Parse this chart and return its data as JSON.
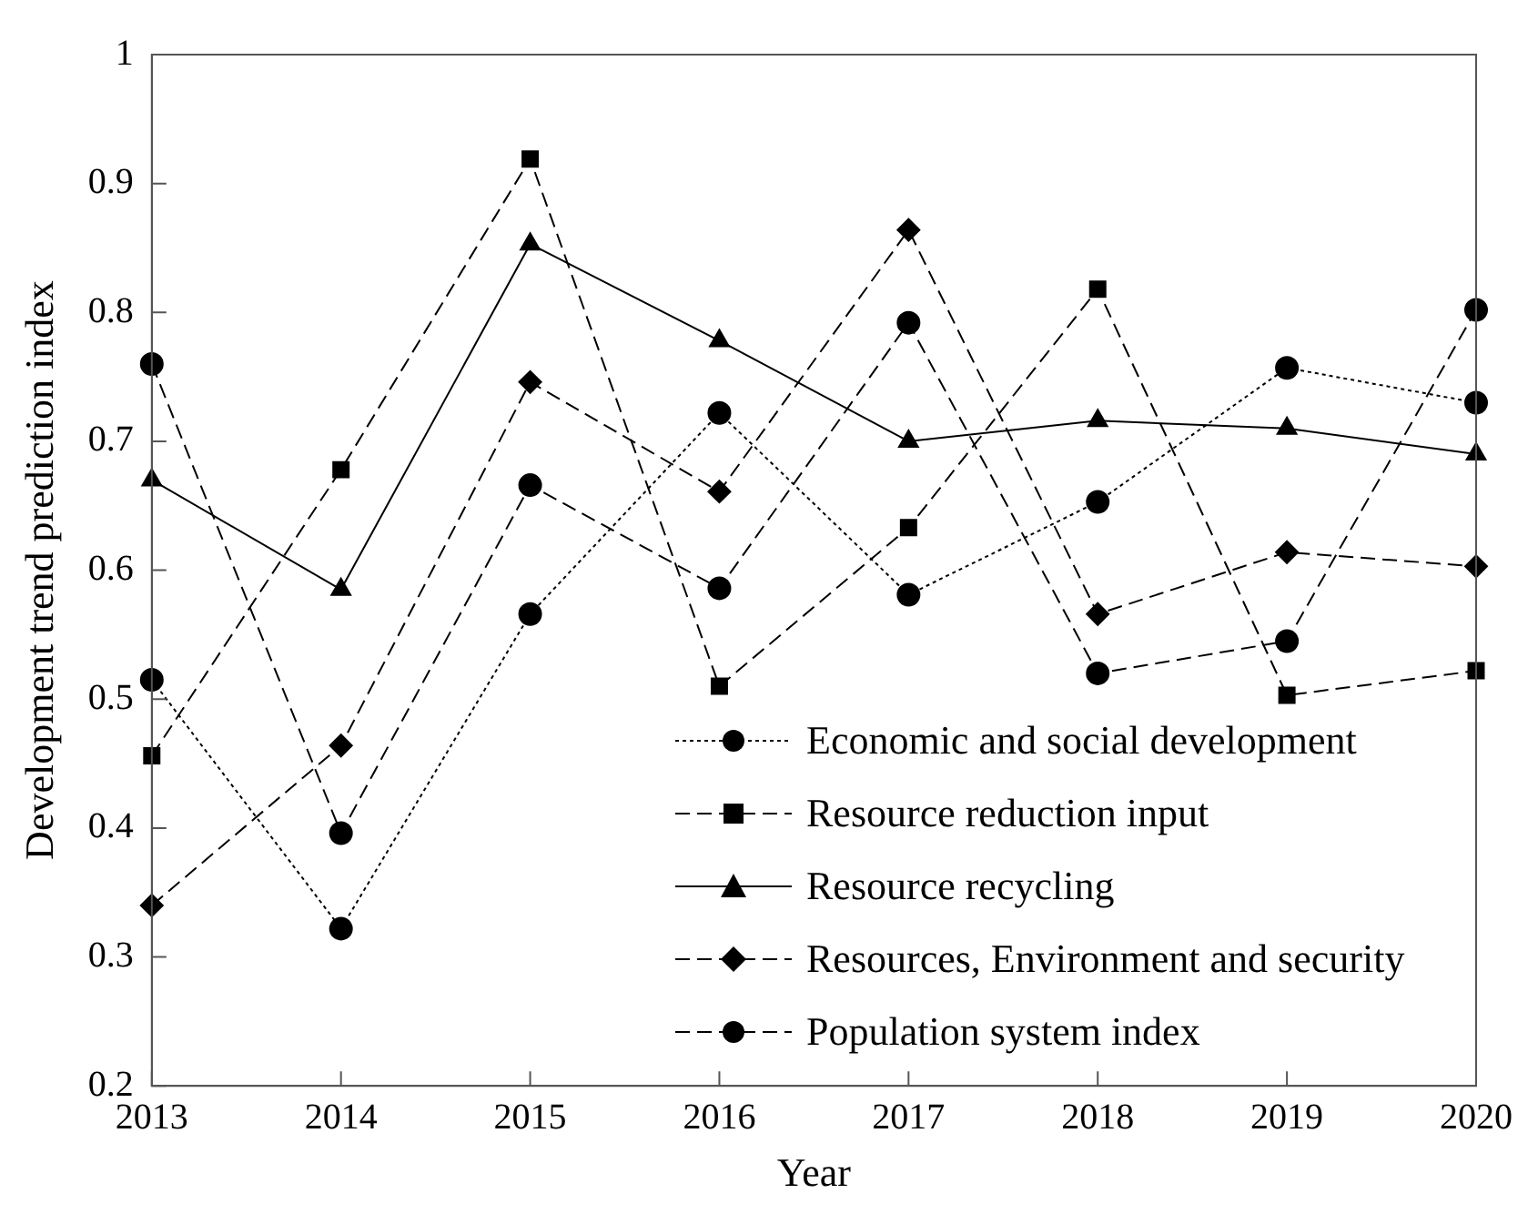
{
  "chart_data": {
    "type": "line",
    "xlabel": "Year",
    "ylabel": "Development trend prediction index",
    "categories": [
      "2013",
      "2014",
      "2015",
      "2016",
      "2017",
      "2018",
      "2019",
      "2020"
    ],
    "series": [
      {
        "name": "Economic and social development",
        "color": "#000000",
        "marker": "circle",
        "line_style": "dotted",
        "values": [
          0.515,
          0.322,
          0.566,
          0.722,
          0.581,
          0.653,
          0.757,
          0.73
        ]
      },
      {
        "name": "Resource reduction input",
        "color": "#000000",
        "marker": "square",
        "line_style": "dashed",
        "values": [
          0.456,
          0.678,
          0.919,
          0.51,
          0.633,
          0.818,
          0.503,
          0.522
        ]
      },
      {
        "name": "Resource recycling",
        "color": "#000000",
        "marker": "triangle",
        "line_style": "solid",
        "values": [
          0.67,
          0.585,
          0.853,
          0.778,
          0.7,
          0.716,
          0.71,
          0.69
        ]
      },
      {
        "name": "Resources, Environment and security",
        "color": "#000000",
        "marker": "diamond",
        "line_style": "dashed",
        "values": [
          0.34,
          0.464,
          0.746,
          0.661,
          0.864,
          0.566,
          0.614,
          0.603
        ]
      },
      {
        "name": "Population system index",
        "color": "#000000",
        "marker": "circle",
        "line_style": "dashed",
        "values": [
          0.76,
          0.396,
          0.666,
          0.586,
          0.792,
          0.52,
          0.545,
          0.802
        ]
      }
    ],
    "ylim": [
      0.2,
      1
    ],
    "yticks": [
      0.2,
      0.3,
      0.4,
      0.5,
      0.6,
      0.7,
      0.8,
      0.9,
      1
    ],
    "grid": false,
    "legend": "bottom right"
  }
}
